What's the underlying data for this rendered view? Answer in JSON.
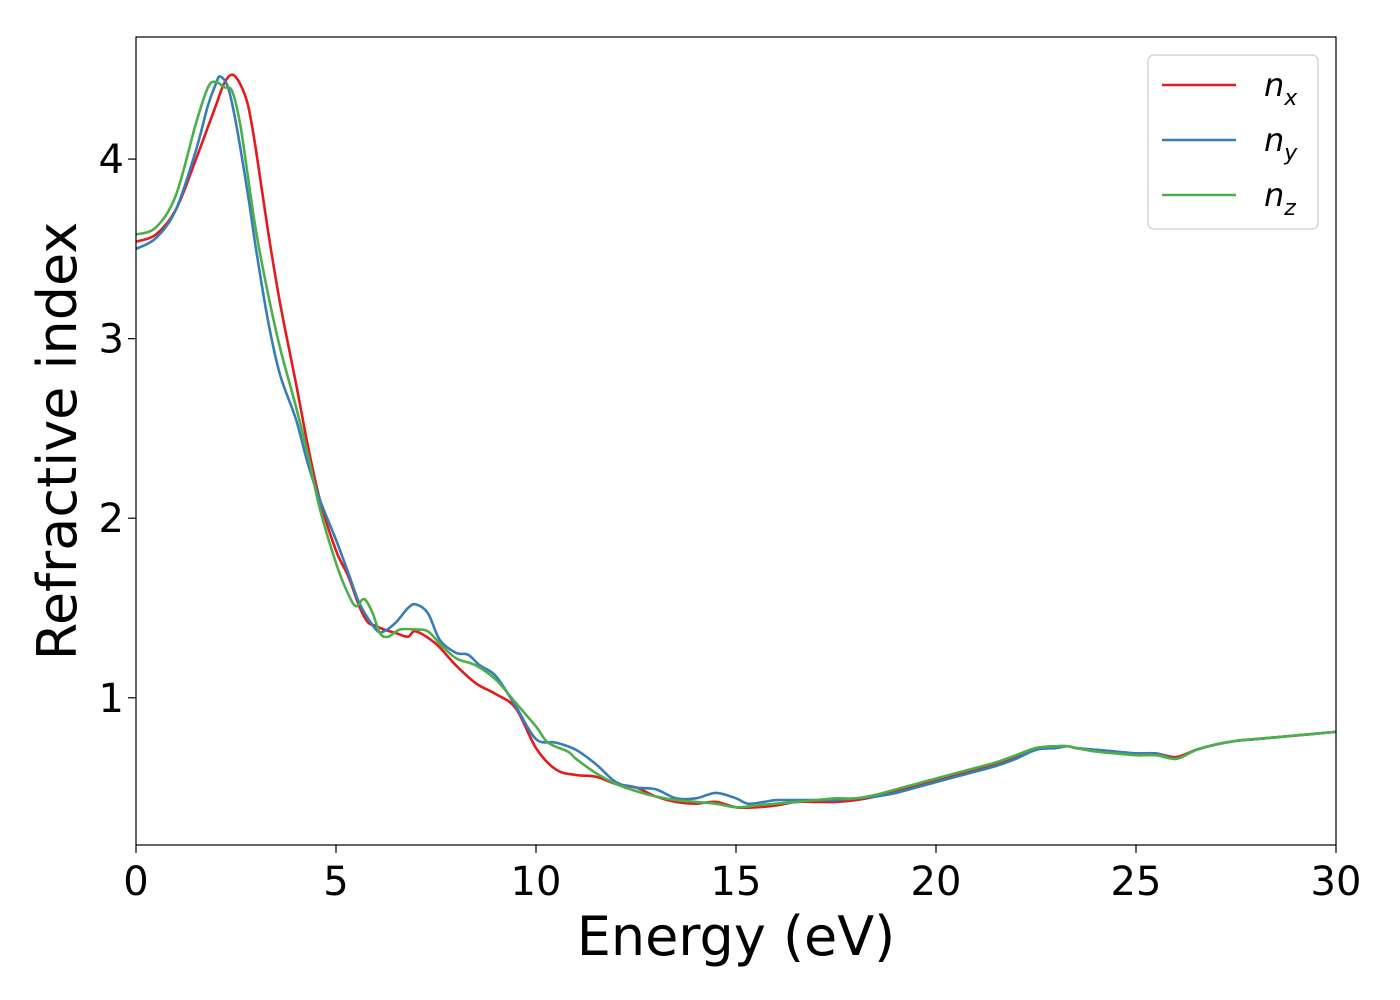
{
  "chart_data": {
    "type": "line",
    "xlabel": "Energy (eV)",
    "ylabel": "Refractive index",
    "xlim": [
      0,
      30
    ],
    "ylim": [
      0.18,
      4.68
    ],
    "xticks": [
      0,
      5,
      10,
      15,
      20,
      25,
      30
    ],
    "xtick_labels": [
      "0",
      "5",
      "10",
      "15",
      "20",
      "25",
      "30"
    ],
    "yticks": [
      1,
      2,
      3,
      4
    ],
    "ytick_labels": [
      "1",
      "2",
      "3",
      "4"
    ],
    "grid": false,
    "legend_position": "top-right",
    "series": [
      {
        "name": "n",
        "subscript": "x",
        "color": "#e41a1c",
        "points": [
          [
            0,
            3.54
          ],
          [
            0.5,
            3.58
          ],
          [
            1.0,
            3.72
          ],
          [
            1.5,
            4.0
          ],
          [
            1.8,
            4.18
          ],
          [
            2.0,
            4.3
          ],
          [
            2.2,
            4.42
          ],
          [
            2.4,
            4.47
          ],
          [
            2.6,
            4.42
          ],
          [
            2.8,
            4.3
          ],
          [
            3.0,
            4.05
          ],
          [
            3.3,
            3.6
          ],
          [
            3.6,
            3.2
          ],
          [
            4.0,
            2.75
          ],
          [
            4.3,
            2.4
          ],
          [
            4.6,
            2.1
          ],
          [
            5.0,
            1.82
          ],
          [
            5.3,
            1.68
          ],
          [
            5.6,
            1.5
          ],
          [
            5.8,
            1.42
          ],
          [
            6.0,
            1.4
          ],
          [
            6.2,
            1.38
          ],
          [
            6.5,
            1.36
          ],
          [
            6.8,
            1.34
          ],
          [
            7.0,
            1.37
          ],
          [
            7.5,
            1.3
          ],
          [
            8.0,
            1.18
          ],
          [
            8.5,
            1.08
          ],
          [
            9.0,
            1.02
          ],
          [
            9.5,
            0.94
          ],
          [
            10.0,
            0.72
          ],
          [
            10.5,
            0.6
          ],
          [
            11.0,
            0.57
          ],
          [
            11.5,
            0.56
          ],
          [
            12.0,
            0.52
          ],
          [
            12.5,
            0.5
          ],
          [
            13.0,
            0.45
          ],
          [
            13.5,
            0.42
          ],
          [
            14.0,
            0.41
          ],
          [
            14.5,
            0.42
          ],
          [
            15.0,
            0.39
          ],
          [
            15.5,
            0.39
          ],
          [
            16.0,
            0.4
          ],
          [
            16.5,
            0.42
          ],
          [
            17.0,
            0.42
          ],
          [
            17.5,
            0.42
          ],
          [
            18.0,
            0.43
          ],
          [
            18.5,
            0.45
          ],
          [
            19.0,
            0.48
          ],
          [
            19.5,
            0.51
          ],
          [
            20.0,
            0.54
          ],
          [
            20.5,
            0.57
          ],
          [
            21.0,
            0.6
          ],
          [
            21.5,
            0.63
          ],
          [
            22.0,
            0.67
          ],
          [
            22.5,
            0.72
          ],
          [
            23.0,
            0.73
          ],
          [
            23.3,
            0.73
          ],
          [
            23.5,
            0.72
          ],
          [
            24.0,
            0.71
          ],
          [
            24.5,
            0.7
          ],
          [
            25.0,
            0.69
          ],
          [
            25.5,
            0.69
          ],
          [
            26.0,
            0.67
          ],
          [
            26.5,
            0.71
          ],
          [
            27.0,
            0.74
          ],
          [
            27.5,
            0.76
          ],
          [
            28.0,
            0.77
          ],
          [
            28.5,
            0.78
          ],
          [
            29.0,
            0.79
          ],
          [
            29.5,
            0.8
          ],
          [
            30.0,
            0.81
          ]
        ]
      },
      {
        "name": "n",
        "subscript": "y",
        "color": "#377eb8",
        "points": [
          [
            0,
            3.5
          ],
          [
            0.5,
            3.56
          ],
          [
            1.0,
            3.72
          ],
          [
            1.5,
            4.05
          ],
          [
            1.8,
            4.3
          ],
          [
            2.0,
            4.42
          ],
          [
            2.1,
            4.46
          ],
          [
            2.3,
            4.4
          ],
          [
            2.5,
            4.2
          ],
          [
            2.8,
            3.8
          ],
          [
            3.0,
            3.5
          ],
          [
            3.3,
            3.1
          ],
          [
            3.6,
            2.8
          ],
          [
            4.0,
            2.55
          ],
          [
            4.3,
            2.3
          ],
          [
            4.6,
            2.1
          ],
          [
            5.0,
            1.88
          ],
          [
            5.3,
            1.7
          ],
          [
            5.6,
            1.52
          ],
          [
            6.0,
            1.38
          ],
          [
            6.2,
            1.37
          ],
          [
            6.5,
            1.42
          ],
          [
            6.8,
            1.5
          ],
          [
            7.0,
            1.52
          ],
          [
            7.3,
            1.47
          ],
          [
            7.6,
            1.32
          ],
          [
            8.0,
            1.25
          ],
          [
            8.3,
            1.24
          ],
          [
            8.6,
            1.18
          ],
          [
            9.0,
            1.12
          ],
          [
            9.5,
            0.95
          ],
          [
            10.0,
            0.77
          ],
          [
            10.5,
            0.75
          ],
          [
            11.0,
            0.71
          ],
          [
            11.5,
            0.63
          ],
          [
            12.0,
            0.53
          ],
          [
            12.5,
            0.5
          ],
          [
            13.0,
            0.49
          ],
          [
            13.5,
            0.44
          ],
          [
            14.0,
            0.44
          ],
          [
            14.5,
            0.47
          ],
          [
            15.0,
            0.44
          ],
          [
            15.3,
            0.41
          ],
          [
            15.7,
            0.42
          ],
          [
            16.0,
            0.43
          ],
          [
            16.5,
            0.43
          ],
          [
            17.0,
            0.43
          ],
          [
            17.5,
            0.43
          ],
          [
            18.0,
            0.44
          ],
          [
            18.5,
            0.45
          ],
          [
            19.0,
            0.47
          ],
          [
            19.5,
            0.5
          ],
          [
            20.0,
            0.53
          ],
          [
            20.5,
            0.56
          ],
          [
            21.0,
            0.59
          ],
          [
            21.5,
            0.62
          ],
          [
            22.0,
            0.66
          ],
          [
            22.5,
            0.71
          ],
          [
            23.0,
            0.72
          ],
          [
            23.3,
            0.73
          ],
          [
            23.5,
            0.72
          ],
          [
            24.0,
            0.71
          ],
          [
            24.5,
            0.7
          ],
          [
            25.0,
            0.69
          ],
          [
            25.5,
            0.69
          ],
          [
            26.0,
            0.66
          ],
          [
            26.5,
            0.71
          ],
          [
            27.0,
            0.74
          ],
          [
            27.5,
            0.76
          ],
          [
            28.0,
            0.77
          ],
          [
            28.5,
            0.78
          ],
          [
            29.0,
            0.79
          ],
          [
            29.5,
            0.8
          ],
          [
            30.0,
            0.81
          ]
        ]
      },
      {
        "name": "n",
        "subscript": "z",
        "color": "#4daf4a",
        "points": [
          [
            0,
            3.58
          ],
          [
            0.5,
            3.62
          ],
          [
            1.0,
            3.8
          ],
          [
            1.5,
            4.2
          ],
          [
            1.8,
            4.4
          ],
          [
            2.0,
            4.43
          ],
          [
            2.2,
            4.4
          ],
          [
            2.4,
            4.38
          ],
          [
            2.6,
            4.2
          ],
          [
            2.8,
            3.9
          ],
          [
            3.0,
            3.6
          ],
          [
            3.3,
            3.25
          ],
          [
            3.6,
            2.95
          ],
          [
            4.0,
            2.62
          ],
          [
            4.3,
            2.35
          ],
          [
            4.6,
            2.05
          ],
          [
            5.0,
            1.75
          ],
          [
            5.3,
            1.58
          ],
          [
            5.5,
            1.51
          ],
          [
            5.7,
            1.55
          ],
          [
            5.9,
            1.48
          ],
          [
            6.1,
            1.36
          ],
          [
            6.3,
            1.34
          ],
          [
            6.6,
            1.38
          ],
          [
            7.0,
            1.38
          ],
          [
            7.3,
            1.37
          ],
          [
            7.6,
            1.3
          ],
          [
            8.0,
            1.22
          ],
          [
            8.5,
            1.18
          ],
          [
            9.0,
            1.1
          ],
          [
            9.5,
            0.97
          ],
          [
            10.0,
            0.84
          ],
          [
            10.3,
            0.75
          ],
          [
            10.8,
            0.7
          ],
          [
            11.0,
            0.66
          ],
          [
            11.5,
            0.58
          ],
          [
            12.0,
            0.52
          ],
          [
            12.5,
            0.48
          ],
          [
            13.0,
            0.45
          ],
          [
            13.5,
            0.43
          ],
          [
            14.0,
            0.42
          ],
          [
            14.5,
            0.41
          ],
          [
            15.0,
            0.39
          ],
          [
            15.5,
            0.4
          ],
          [
            16.0,
            0.41
          ],
          [
            16.5,
            0.42
          ],
          [
            17.0,
            0.43
          ],
          [
            17.5,
            0.44
          ],
          [
            18.0,
            0.44
          ],
          [
            18.5,
            0.46
          ],
          [
            19.0,
            0.49
          ],
          [
            19.5,
            0.52
          ],
          [
            20.0,
            0.55
          ],
          [
            20.5,
            0.58
          ],
          [
            21.0,
            0.61
          ],
          [
            21.5,
            0.64
          ],
          [
            22.0,
            0.68
          ],
          [
            22.5,
            0.72
          ],
          [
            23.0,
            0.73
          ],
          [
            23.3,
            0.73
          ],
          [
            23.5,
            0.72
          ],
          [
            24.0,
            0.7
          ],
          [
            24.5,
            0.69
          ],
          [
            25.0,
            0.68
          ],
          [
            25.5,
            0.68
          ],
          [
            26.0,
            0.66
          ],
          [
            26.5,
            0.71
          ],
          [
            27.0,
            0.74
          ],
          [
            27.5,
            0.76
          ],
          [
            28.0,
            0.77
          ],
          [
            28.5,
            0.78
          ],
          [
            29.0,
            0.79
          ],
          [
            29.5,
            0.8
          ],
          [
            30.0,
            0.81
          ]
        ]
      }
    ]
  }
}
